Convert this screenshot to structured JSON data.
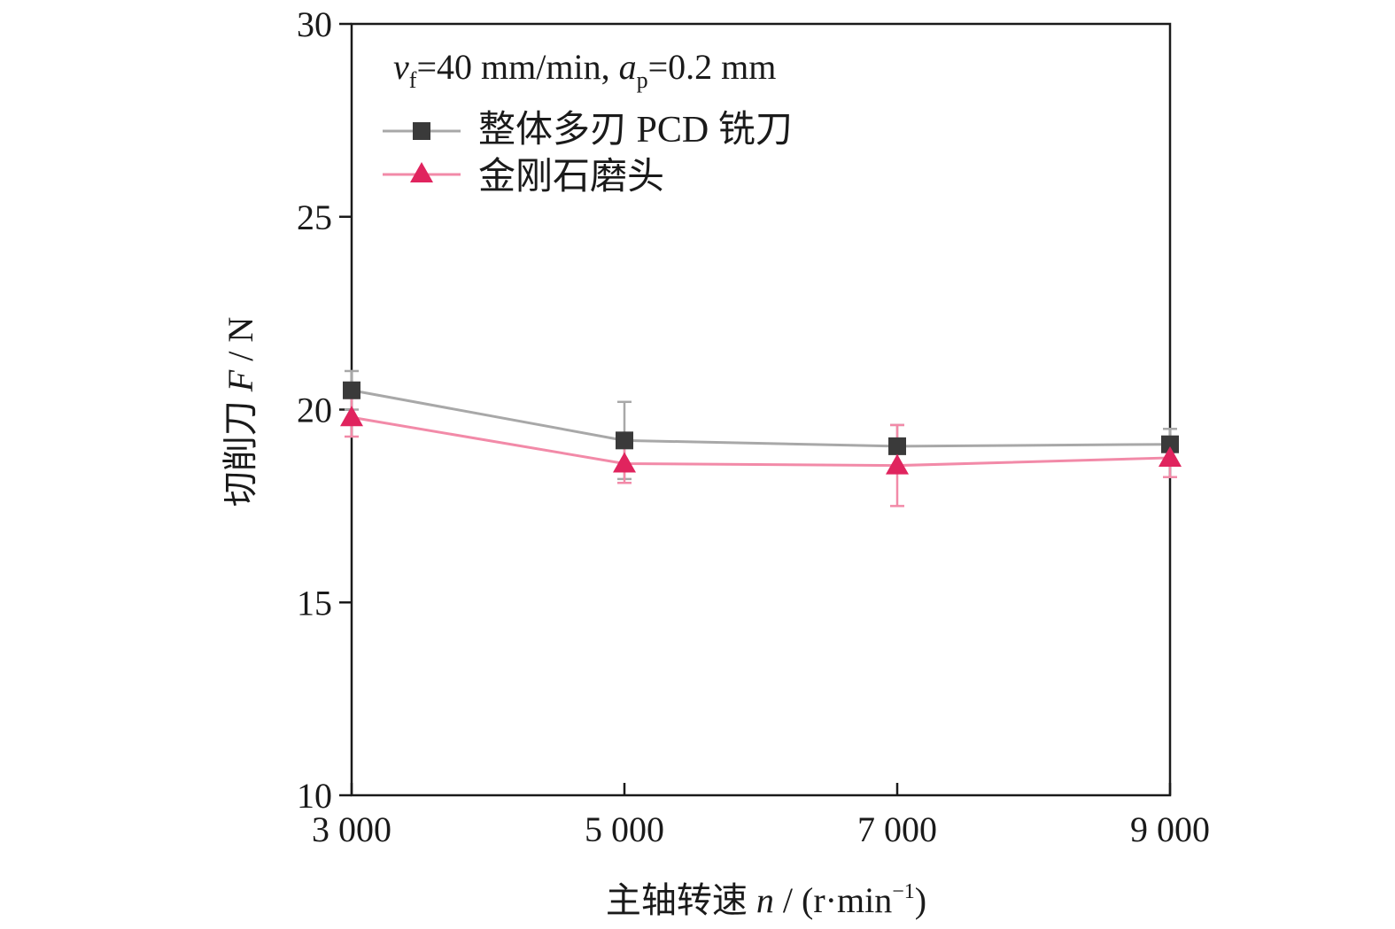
{
  "chart_data": {
    "type": "line",
    "x": [
      3000,
      5000,
      7000,
      9000
    ],
    "x_tick_labels": [
      "3 000",
      "5 000",
      "7 000",
      "9 000"
    ],
    "y_ticks": [
      10,
      15,
      20,
      25,
      30
    ],
    "xlim": [
      3000,
      9000
    ],
    "ylim": [
      10,
      30
    ],
    "xlabel": {
      "main": "主轴转速 ",
      "var": "n",
      "mid": " / (r·min",
      "sup": "−1",
      "end": ")"
    },
    "ylabel": {
      "main": "切削刀 ",
      "var": "F",
      "end": " / N"
    },
    "annotation": {
      "v": "v",
      "v_sub": "f",
      "v_val": "=40 mm/min, ",
      "a": "a",
      "a_sub": "p",
      "a_val": "=0.2 mm"
    },
    "legend_position": "top-left",
    "grid": false,
    "series": [
      {
        "name": "整体多刃 PCD 铣刀",
        "marker": "square",
        "color": "#3a3a3a",
        "line_color": "#a8a8a8",
        "values": [
          20.5,
          19.2,
          19.05,
          19.1
        ],
        "errors": [
          0.5,
          1.0,
          0.55,
          0.4
        ]
      },
      {
        "name": "金刚石磨头",
        "marker": "triangle",
        "color": "#e0245e",
        "line_color": "#f28aa8",
        "values": [
          19.8,
          18.6,
          18.55,
          18.75
        ],
        "errors": [
          0.5,
          0.5,
          1.05,
          0.5
        ]
      }
    ]
  }
}
